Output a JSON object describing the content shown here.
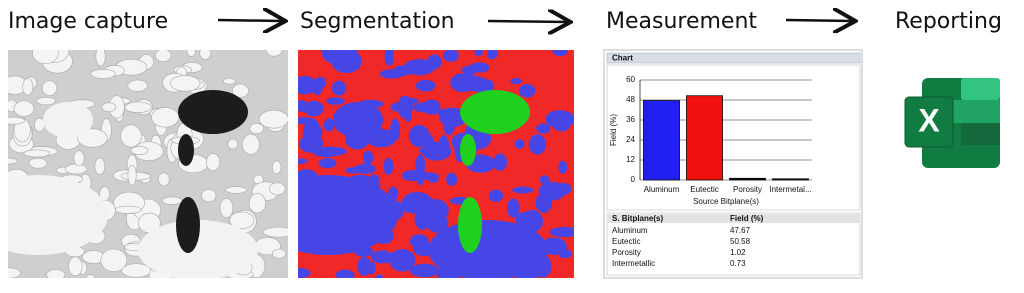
{
  "steps": [
    "Image capture",
    "Segmentation",
    "Measurement",
    "Reporting"
  ],
  "chart_data": {
    "type": "bar",
    "panel_title": "Chart",
    "y_label": "Field (%)",
    "x_label": "Source Bitplane(s)",
    "categories": [
      "Aluminum",
      "Eutectic",
      "Porosity",
      "Intermetal..."
    ],
    "values": [
      47.67,
      50.58,
      1.02,
      0.73
    ],
    "colors": [
      "#2020f0",
      "#f01010",
      "#000000",
      "#000000"
    ],
    "ylim": [
      0,
      60
    ],
    "yticks": [
      0,
      12,
      24,
      36,
      48,
      60
    ],
    "grid": true
  },
  "table": {
    "header": [
      "S. Bitplane(s)",
      "Field (%)"
    ],
    "rows": [
      [
        "Aluminum",
        "47.67"
      ],
      [
        "Eutectic",
        "50.58"
      ],
      [
        "Porosity",
        "1.02"
      ],
      [
        "Intermetallic",
        "0.73"
      ]
    ]
  },
  "reporting_icon": "X"
}
